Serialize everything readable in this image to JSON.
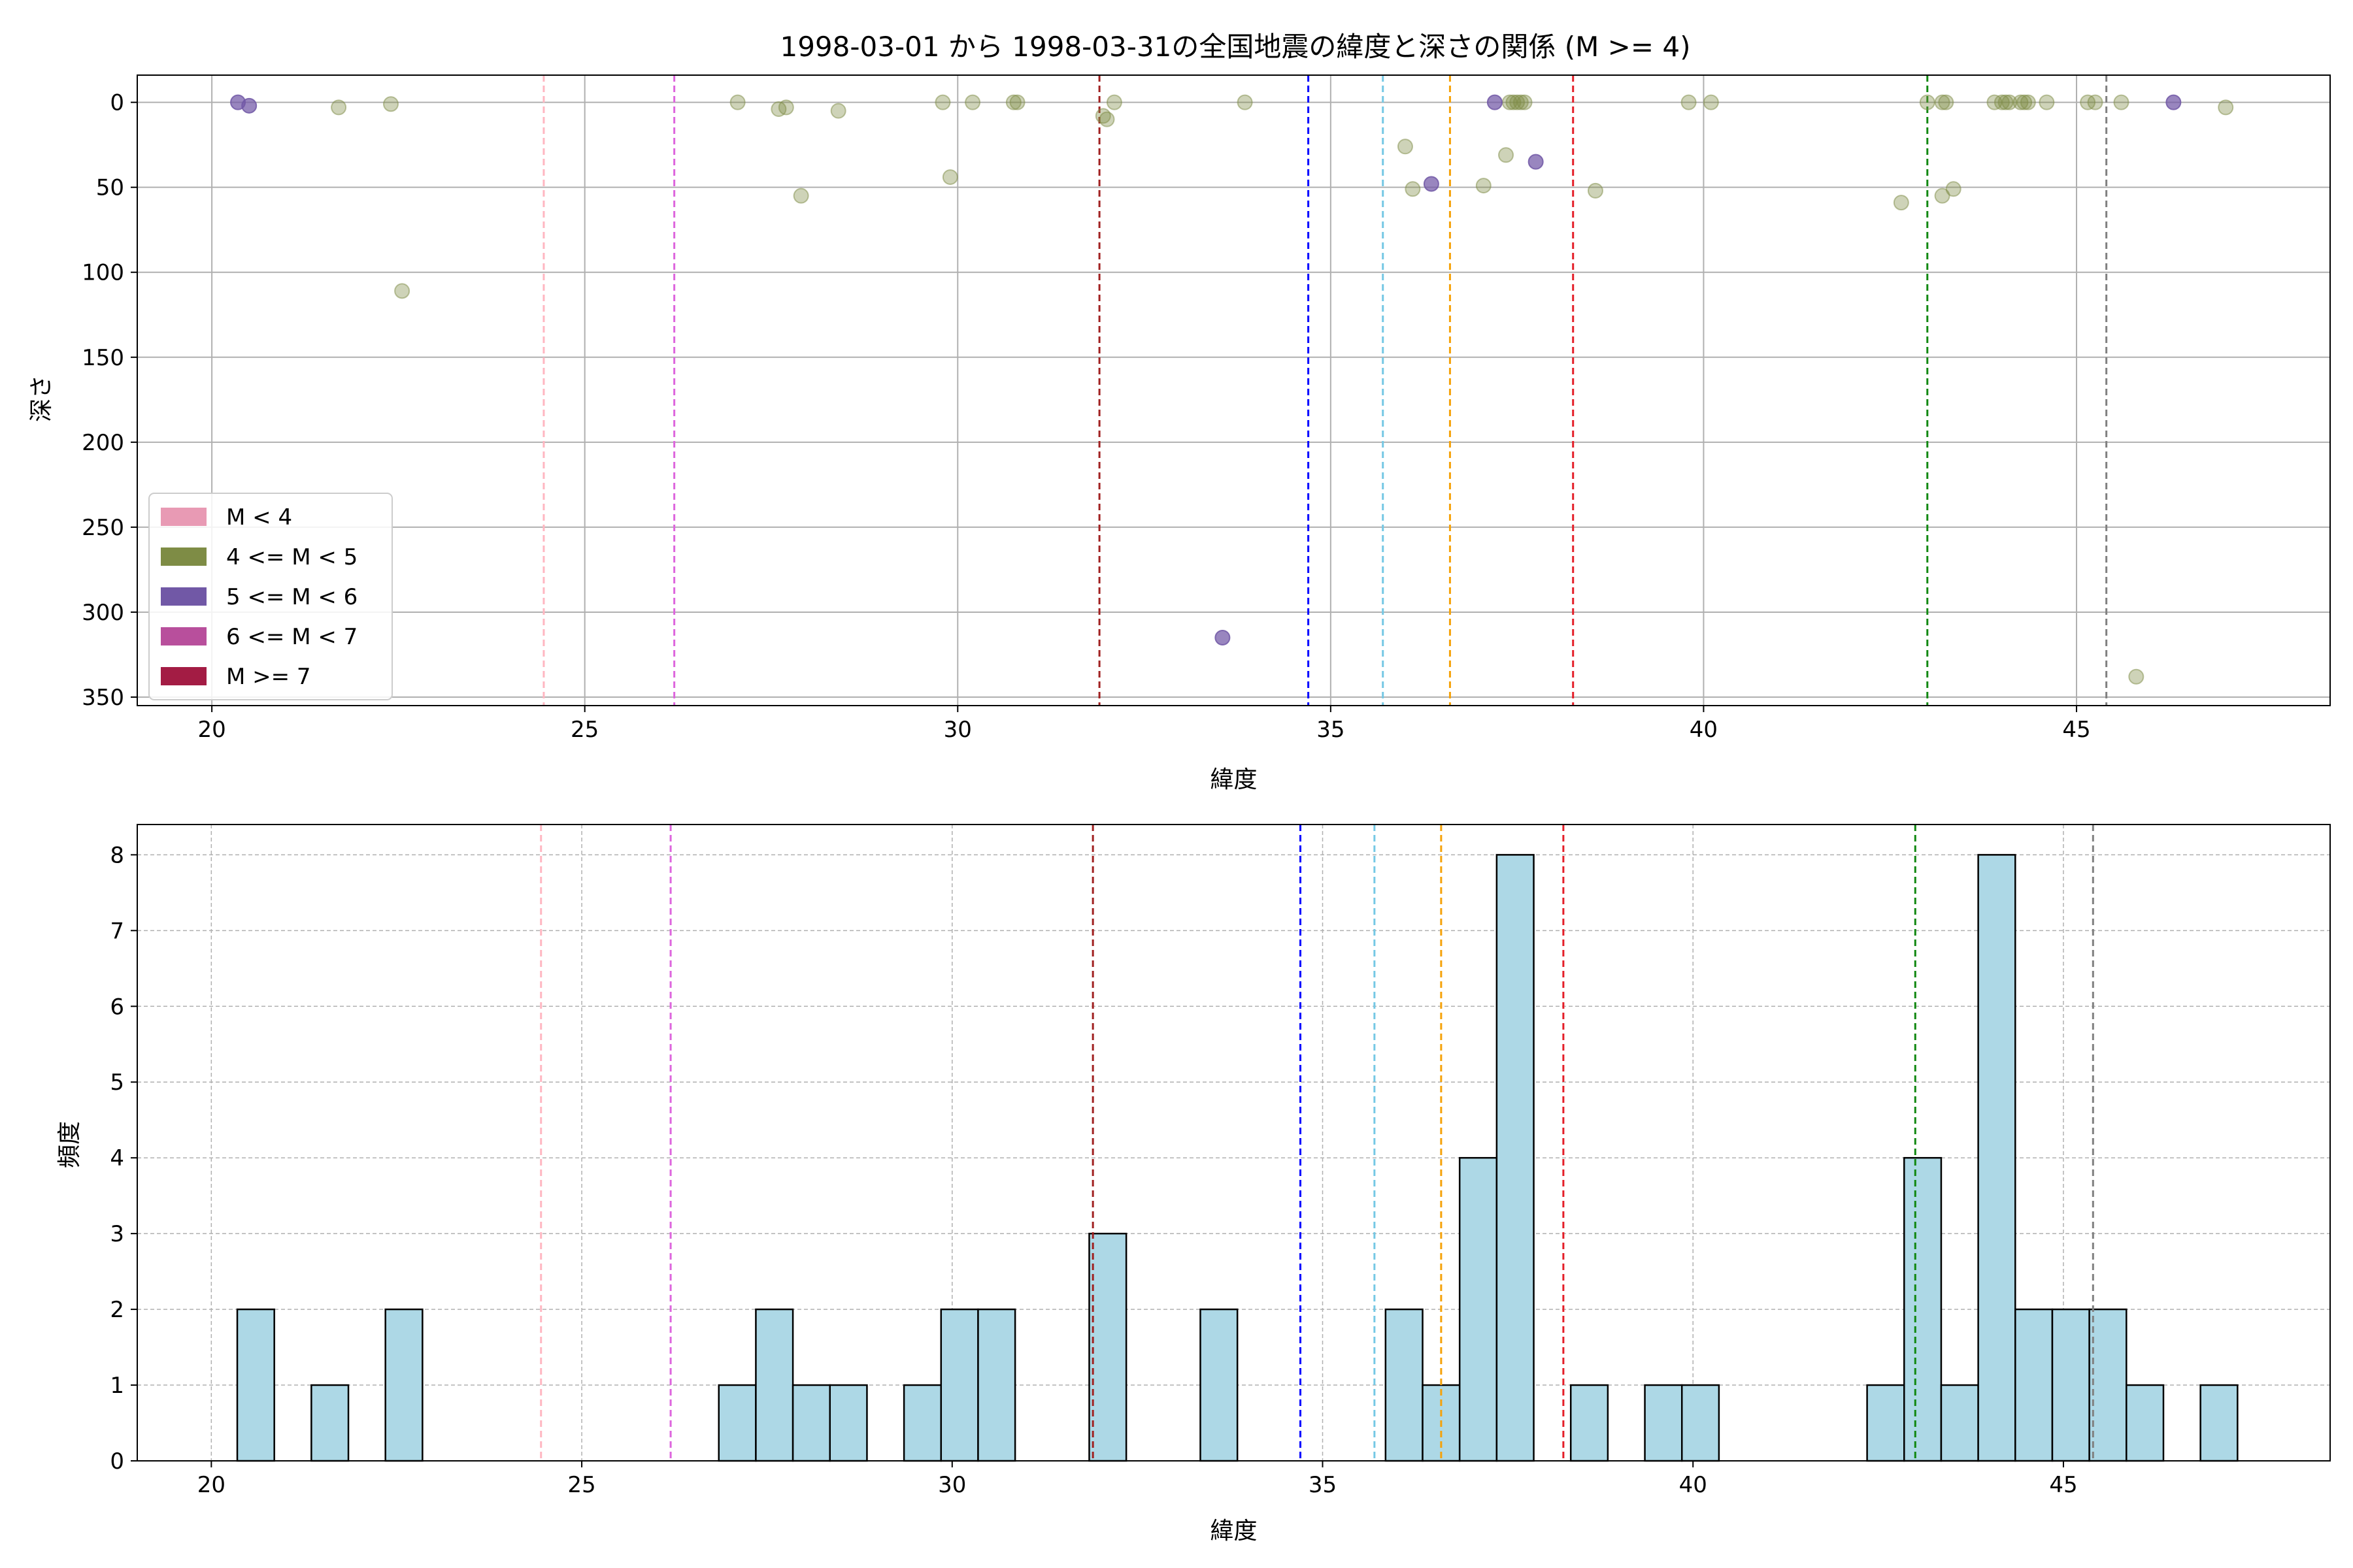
{
  "chart_data": [
    {
      "type": "scatter",
      "title": "1998-03-01 から 1998-03-31の全国地震の緯度と深さの関係 (M >= 4)",
      "xlabel": "緯度",
      "ylabel": "深さ",
      "xlim": [
        19,
        48.4
      ],
      "ylim": [
        355,
        -16
      ],
      "y_inverted": true,
      "grid": true,
      "legend_position": "lower-left",
      "xticks": [
        20,
        25,
        30,
        35,
        40,
        45
      ],
      "yticks": [
        0,
        50,
        100,
        150,
        200,
        250,
        300,
        350
      ],
      "legend": [
        {
          "label": "M < 4",
          "color": "#e89ab4"
        },
        {
          "label": "4 <= M < 5",
          "color": "#7e8c45"
        },
        {
          "label": "5 <= M < 6",
          "color": "#7158a6"
        },
        {
          "label": "6 <= M < 7",
          "color": "#b84f9c"
        },
        {
          "label": "M >= 7",
          "color": "#a31c44"
        }
      ],
      "series": [
        {
          "magnitude_class": "4 <= M < 5",
          "color": "#7e8c45",
          "points": [
            [
              21.7,
              3
            ],
            [
              22.4,
              1
            ],
            [
              22.55,
              111
            ],
            [
              27.05,
              0
            ],
            [
              27.6,
              4
            ],
            [
              27.7,
              3
            ],
            [
              27.9,
              55
            ],
            [
              28.4,
              5
            ],
            [
              29.8,
              0
            ],
            [
              29.9,
              44
            ],
            [
              30.2,
              0
            ],
            [
              30.75,
              0
            ],
            [
              30.8,
              0
            ],
            [
              31.95,
              8
            ],
            [
              32.0,
              10
            ],
            [
              32.1,
              0
            ],
            [
              33.85,
              0
            ],
            [
              36.0,
              26
            ],
            [
              36.1,
              51
            ],
            [
              37.05,
              49
            ],
            [
              37.35,
              31
            ],
            [
              37.4,
              0
            ],
            [
              37.45,
              0
            ],
            [
              37.5,
              0
            ],
            [
              37.55,
              0
            ],
            [
              37.6,
              0
            ],
            [
              38.55,
              52
            ],
            [
              39.8,
              0
            ],
            [
              40.1,
              0
            ],
            [
              42.65,
              59
            ],
            [
              43.0,
              0
            ],
            [
              43.2,
              0
            ],
            [
              43.2,
              55
            ],
            [
              43.25,
              0
            ],
            [
              43.35,
              51
            ],
            [
              43.9,
              0
            ],
            [
              44.0,
              0
            ],
            [
              44.05,
              0
            ],
            [
              44.1,
              0
            ],
            [
              44.25,
              0
            ],
            [
              44.3,
              0
            ],
            [
              44.35,
              0
            ],
            [
              44.6,
              0
            ],
            [
              45.15,
              0
            ],
            [
              45.25,
              0
            ],
            [
              45.6,
              0
            ],
            [
              45.8,
              338
            ],
            [
              47.0,
              3
            ]
          ]
        },
        {
          "magnitude_class": "5 <= M < 6",
          "color": "#7158a6",
          "points": [
            [
              20.35,
              0
            ],
            [
              20.5,
              2
            ],
            [
              33.55,
              315
            ],
            [
              36.35,
              48
            ],
            [
              37.2,
              0
            ],
            [
              37.75,
              35
            ],
            [
              46.3,
              0
            ]
          ]
        }
      ],
      "vertical_lines": [
        {
          "x": 24.45,
          "color": "#ffb6c1"
        },
        {
          "x": 26.2,
          "color": "#dd66dd"
        },
        {
          "x": 31.9,
          "color": "#a02020"
        },
        {
          "x": 34.7,
          "color": "#0000ff"
        },
        {
          "x": 35.7,
          "color": "#75c8e4"
        },
        {
          "x": 36.6,
          "color": "#f5a20a"
        },
        {
          "x": 38.25,
          "color": "#e41e28"
        },
        {
          "x": 43.0,
          "color": "#118811"
        },
        {
          "x": 45.4,
          "color": "#808080"
        }
      ]
    },
    {
      "type": "bar",
      "xlabel": "緯度",
      "ylabel": "頻度",
      "xlim": [
        19,
        48.6
      ],
      "ylim": [
        0,
        8.4
      ],
      "grid": true,
      "grid_style": "dashed",
      "bar_color": "#add8e6",
      "bar_edge_color": "#000000",
      "xticks": [
        20,
        25,
        30,
        35,
        40,
        45
      ],
      "yticks": [
        0,
        1,
        2,
        3,
        4,
        5,
        6,
        7,
        8
      ],
      "bin_width": 0.5,
      "bins": [
        [
          20.35,
          2
        ],
        [
          21.35,
          1
        ],
        [
          22.35,
          2
        ],
        [
          26.85,
          1
        ],
        [
          27.35,
          2
        ],
        [
          27.85,
          1
        ],
        [
          28.35,
          1
        ],
        [
          29.35,
          1
        ],
        [
          29.85,
          2
        ],
        [
          30.35,
          2
        ],
        [
          31.85,
          3
        ],
        [
          33.35,
          2
        ],
        [
          35.85,
          2
        ],
        [
          36.35,
          1
        ],
        [
          36.85,
          4
        ],
        [
          37.35,
          8
        ],
        [
          38.35,
          1
        ],
        [
          39.35,
          1
        ],
        [
          39.85,
          1
        ],
        [
          42.35,
          1
        ],
        [
          42.85,
          4
        ],
        [
          43.35,
          1
        ],
        [
          43.85,
          8
        ],
        [
          44.35,
          2
        ],
        [
          44.85,
          2
        ],
        [
          45.35,
          2
        ],
        [
          45.85,
          1
        ],
        [
          46.85,
          1
        ]
      ],
      "vertical_lines": [
        {
          "x": 24.45,
          "color": "#ffb6c1"
        },
        {
          "x": 26.2,
          "color": "#dd66dd"
        },
        {
          "x": 31.9,
          "color": "#a02020"
        },
        {
          "x": 34.7,
          "color": "#0000ff"
        },
        {
          "x": 35.7,
          "color": "#75c8e4"
        },
        {
          "x": 36.6,
          "color": "#f5a20a"
        },
        {
          "x": 38.25,
          "color": "#e41e28"
        },
        {
          "x": 43.0,
          "color": "#118811"
        },
        {
          "x": 45.4,
          "color": "#808080"
        }
      ]
    }
  ]
}
